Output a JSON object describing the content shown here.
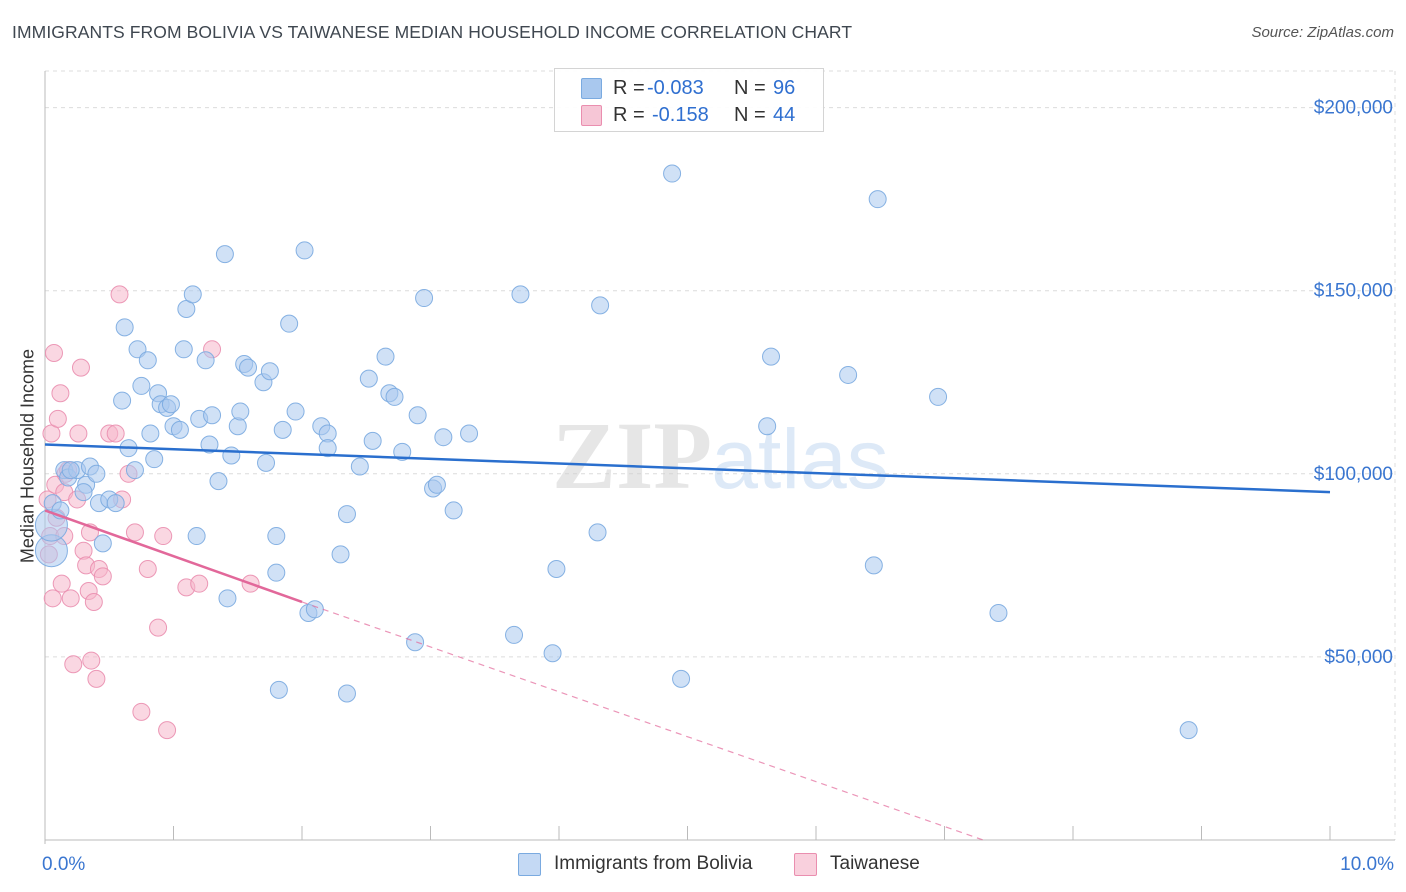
{
  "header": {
    "title": "IMMIGRANTS FROM BOLIVIA VS TAIWANESE MEDIAN HOUSEHOLD INCOME CORRELATION CHART",
    "source": "Source: ZipAtlas.com"
  },
  "watermark": {
    "zip": "ZIP",
    "atlas": "atlas"
  },
  "stats_legend": {
    "rows": [
      {
        "r_label": "R =",
        "r_value": "-0.083",
        "n_label": "N =",
        "n_value": "96",
        "color": "#a9c8ee"
      },
      {
        "r_label": "R =",
        "r_value": "-0.158",
        "n_label": "N =",
        "n_value": "44",
        "color": "#f6b6ca"
      }
    ]
  },
  "colors": {
    "blue_fill": "#a9c8ee",
    "blue_stroke": "#7aaae0",
    "blue_line": "#2a6fce",
    "pink_fill": "#f6b6ca",
    "pink_stroke": "#ea8eaf",
    "pink_line": "#e2689a",
    "tick_label": "#3a76d0",
    "grid": "#dcdcdc"
  },
  "chart_data": {
    "type": "scatter",
    "title": "IMMIGRANTS FROM BOLIVIA VS TAIWANESE MEDIAN HOUSEHOLD INCOME CORRELATION CHART",
    "xlabel": "",
    "ylabel": "Median Household Income",
    "xlim": [
      0,
      10
    ],
    "ylim": [
      0,
      210000
    ],
    "x_tick_labels": [
      "0.0%",
      "10.0%"
    ],
    "x_minor_ticks": [
      1,
      2,
      3,
      4,
      5,
      6,
      7,
      8,
      9
    ],
    "y_ticks": [
      50000,
      100000,
      150000,
      200000
    ],
    "y_tick_labels": [
      "$50,000",
      "$100,000",
      "$150,000",
      "$200,000"
    ],
    "grid": true,
    "legend": [
      "Immigrants from Bolivia",
      "Taiwanese"
    ],
    "series": [
      {
        "name": "Immigrants from Bolivia",
        "points": [
          [
            0.05,
            79000,
            "large"
          ],
          [
            0.05,
            86000,
            "large"
          ],
          [
            0.06,
            92000
          ],
          [
            0.12,
            90000
          ],
          [
            0.15,
            101000
          ],
          [
            0.18,
            99000
          ],
          [
            0.25,
            101000
          ],
          [
            0.32,
            97000
          ],
          [
            0.35,
            102000
          ],
          [
            0.4,
            100000
          ],
          [
            0.42,
            92000
          ],
          [
            0.45,
            81000
          ],
          [
            0.5,
            93000
          ],
          [
            0.55,
            92000
          ],
          [
            0.6,
            120000
          ],
          [
            0.62,
            140000
          ],
          [
            0.65,
            107000
          ],
          [
            0.72,
            134000
          ],
          [
            0.75,
            124000
          ],
          [
            0.8,
            131000
          ],
          [
            0.82,
            111000
          ],
          [
            0.85,
            104000
          ],
          [
            0.88,
            122000
          ],
          [
            0.9,
            119000
          ],
          [
            0.95,
            118000
          ],
          [
            0.98,
            119000
          ],
          [
            1.0,
            113000
          ],
          [
            1.05,
            112000
          ],
          [
            1.08,
            134000
          ],
          [
            1.1,
            145000
          ],
          [
            1.15,
            149000
          ],
          [
            1.18,
            83000
          ],
          [
            1.2,
            115000
          ],
          [
            1.25,
            131000
          ],
          [
            1.28,
            108000
          ],
          [
            1.3,
            116000
          ],
          [
            1.35,
            98000
          ],
          [
            1.4,
            160000
          ],
          [
            1.42,
            66000
          ],
          [
            1.45,
            105000
          ],
          [
            1.5,
            113000
          ],
          [
            1.52,
            117000
          ],
          [
            1.55,
            130000
          ],
          [
            1.58,
            129000
          ],
          [
            1.7,
            125000
          ],
          [
            1.72,
            103000
          ],
          [
            1.75,
            128000
          ],
          [
            1.8,
            73000
          ],
          [
            1.8,
            83000
          ],
          [
            1.82,
            41000
          ],
          [
            1.85,
            112000
          ],
          [
            1.9,
            141000
          ],
          [
            1.95,
            117000
          ],
          [
            2.02,
            161000
          ],
          [
            2.05,
            62000
          ],
          [
            2.1,
            63000
          ],
          [
            2.15,
            113000
          ],
          [
            2.2,
            111000
          ],
          [
            2.2,
            107000
          ],
          [
            2.3,
            78000
          ],
          [
            2.35,
            89000
          ],
          [
            2.35,
            40000
          ],
          [
            2.45,
            102000
          ],
          [
            2.52,
            126000
          ],
          [
            2.55,
            109000
          ],
          [
            2.65,
            132000
          ],
          [
            2.68,
            122000
          ],
          [
            2.72,
            121000
          ],
          [
            2.78,
            106000
          ],
          [
            2.88,
            54000
          ],
          [
            2.9,
            116000
          ],
          [
            2.95,
            148000
          ],
          [
            3.02,
            96000
          ],
          [
            3.05,
            97000
          ],
          [
            3.1,
            110000
          ],
          [
            3.18,
            90000
          ],
          [
            3.3,
            111000
          ],
          [
            3.65,
            56000
          ],
          [
            3.7,
            149000
          ],
          [
            3.95,
            51000
          ],
          [
            3.98,
            74000
          ],
          [
            4.3,
            84000
          ],
          [
            4.32,
            146000
          ],
          [
            4.88,
            182000
          ],
          [
            4.95,
            44000
          ],
          [
            5.62,
            113000
          ],
          [
            5.65,
            132000
          ],
          [
            6.25,
            127000
          ],
          [
            6.45,
            75000
          ],
          [
            6.48,
            175000
          ],
          [
            6.95,
            121000
          ],
          [
            7.42,
            62000
          ],
          [
            8.9,
            30000
          ],
          [
            0.2,
            101000
          ],
          [
            0.7,
            101000
          ],
          [
            0.3,
            95000
          ]
        ],
        "trend": {
          "x": [
            0,
            10
          ],
          "y": [
            108000,
            95000
          ]
        }
      },
      {
        "name": "Taiwanese",
        "points": [
          [
            0.02,
            93000
          ],
          [
            0.03,
            78000
          ],
          [
            0.04,
            83000
          ],
          [
            0.05,
            111000
          ],
          [
            0.06,
            66000
          ],
          [
            0.07,
            133000
          ],
          [
            0.08,
            97000
          ],
          [
            0.09,
            88000
          ],
          [
            0.1,
            115000
          ],
          [
            0.12,
            122000
          ],
          [
            0.13,
            70000
          ],
          [
            0.15,
            95000
          ],
          [
            0.16,
            100000
          ],
          [
            0.18,
            101000
          ],
          [
            0.2,
            66000
          ],
          [
            0.22,
            48000
          ],
          [
            0.25,
            93000
          ],
          [
            0.26,
            111000
          ],
          [
            0.28,
            129000
          ],
          [
            0.3,
            79000
          ],
          [
            0.32,
            75000
          ],
          [
            0.34,
            68000
          ],
          [
            0.36,
            49000
          ],
          [
            0.38,
            65000
          ],
          [
            0.4,
            44000
          ],
          [
            0.42,
            74000
          ],
          [
            0.45,
            72000
          ],
          [
            0.5,
            111000
          ],
          [
            0.55,
            111000
          ],
          [
            0.58,
            149000
          ],
          [
            0.6,
            93000
          ],
          [
            0.65,
            100000
          ],
          [
            0.7,
            84000
          ],
          [
            0.75,
            35000
          ],
          [
            0.8,
            74000
          ],
          [
            0.88,
            58000
          ],
          [
            0.92,
            83000
          ],
          [
            0.95,
            30000
          ],
          [
            1.1,
            69000
          ],
          [
            1.2,
            70000
          ],
          [
            1.3,
            134000
          ],
          [
            1.6,
            70000
          ],
          [
            0.15,
            83000
          ],
          [
            0.35,
            84000
          ]
        ],
        "trend": {
          "x": [
            0,
            2.0
          ],
          "y": [
            90000,
            65000
          ]
        },
        "trend_extension": {
          "x": [
            2.0,
            7.3
          ],
          "y": [
            65000,
            0
          ]
        }
      }
    ]
  }
}
